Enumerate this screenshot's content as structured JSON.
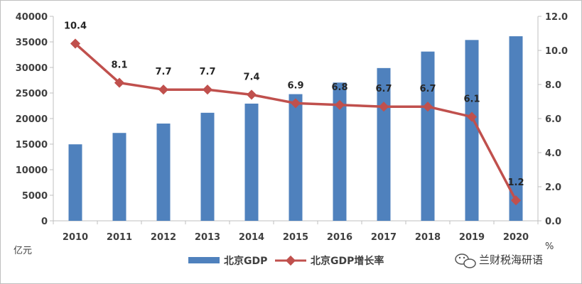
{
  "chart_data": {
    "type": "bar+line",
    "categories": [
      "2010",
      "2011",
      "2012",
      "2013",
      "2014",
      "2015",
      "2016",
      "2017",
      "2018",
      "2019",
      "2020"
    ],
    "series": [
      {
        "name": "北京GDP",
        "type": "bar",
        "axis": "left",
        "color": "#4f81bd",
        "values": [
          14964,
          17189,
          19024,
          21135,
          22926,
          24779,
          27041,
          29883,
          33106,
          35371,
          36103
        ]
      },
      {
        "name": "北京GDP增长率",
        "type": "line",
        "axis": "right",
        "color": "#c0504d",
        "values": [
          10.4,
          8.1,
          7.7,
          7.7,
          7.4,
          6.9,
          6.8,
          6.7,
          6.7,
          6.1,
          1.2
        ],
        "labels": [
          "10.4",
          "8.1",
          "7.7",
          "7.7",
          "7.4",
          "6.9",
          "6.8",
          "6.7",
          "6.7",
          "6.1",
          "1.2"
        ]
      }
    ],
    "y_left": {
      "unit": "亿元",
      "ylim": [
        0,
        40000
      ],
      "ticks": [
        "0",
        "5000",
        "10000",
        "15000",
        "20000",
        "25000",
        "30000",
        "35000",
        "40000"
      ]
    },
    "y_right": {
      "unit": "%",
      "ylim": [
        0,
        12
      ],
      "ticks": [
        "0.0",
        "2.0",
        "4.0",
        "6.0",
        "8.0",
        "10.0",
        "12.0"
      ]
    },
    "legend_position": "bottom",
    "grid": false
  },
  "watermark": {
    "text": "兰财税海研语",
    "icon": "wechat-icon"
  }
}
